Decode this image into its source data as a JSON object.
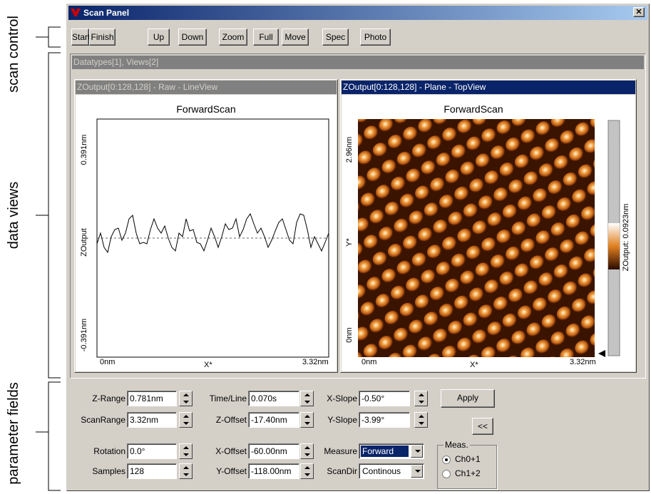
{
  "annotations": {
    "scan_control": "scan control",
    "data_views": "data views",
    "parameter_fields": "parameter fields"
  },
  "window": {
    "title": "Scan Panel"
  },
  "toolbar": {
    "buttons": [
      "Start",
      "Finish",
      "Up",
      "Down",
      "Zoom",
      "Full",
      "Move",
      "Spec",
      "Photo"
    ]
  },
  "data_panel": {
    "header": "Datatypes[1], Views[2]",
    "views": [
      {
        "title": "ZOutput[0:128,128] - Raw - LineView",
        "plot_title": "ForwardScan",
        "y_max": "0.391nm",
        "y_label": "ZOutput",
        "y_min": "-0.391nm",
        "x_min": "0nm",
        "x_label": "X*",
        "x_max": "3.32nm"
      },
      {
        "title": "ZOutput[0:128,128] - Plane - TopView",
        "plot_title": "ForwardScan",
        "y_max": "2.96nm",
        "y_label": "Y*",
        "y_min": "0nm",
        "x_min": "0nm",
        "x_label": "X*",
        "x_max": "3.32nm",
        "colorbar_label": "ZOutput: 0.0923nm"
      }
    ]
  },
  "parameters": {
    "fields": [
      {
        "label": "Z-Range",
        "value": "0.781nm"
      },
      {
        "label": "ScanRange",
        "value": "3.32nm"
      },
      {
        "label": "Rotation",
        "value": "0.0°"
      },
      {
        "label": "Samples",
        "value": "128"
      },
      {
        "label": "Time/Line",
        "value": "0.070s"
      },
      {
        "label": "Z-Offset",
        "value": "-17.40nm"
      },
      {
        "label": "X-Offset",
        "value": "-60.00nm"
      },
      {
        "label": "Y-Offset",
        "value": "-118.00nm"
      },
      {
        "label": "X-Slope",
        "value": "-0.50°"
      },
      {
        "label": "Y-Slope",
        "value": "-3.99°"
      }
    ],
    "selects": [
      {
        "label": "Measure",
        "value": "Forward"
      },
      {
        "label": "ScanDir",
        "value": "Continous"
      }
    ],
    "buttons": [
      "Apply",
      "<<"
    ],
    "meas_group": {
      "title": "Meas.",
      "options": [
        "Ch0+1",
        "Ch1+2"
      ]
    }
  }
}
